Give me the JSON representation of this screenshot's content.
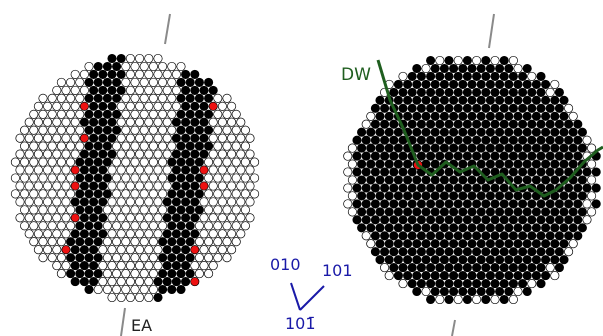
{
  "labels": {
    "dw": "DW",
    "ea": "EA",
    "dir_010": "010",
    "dir_101": "101",
    "dir_10bar1": "101̄"
  },
  "colors": {
    "black_atom": "#000000",
    "white_atom": "#ffffff",
    "red_atom": "#ee1111",
    "domain_wall": "#1f5e1f",
    "direction_axes": "#1a1aa8",
    "axis_line": "#8a8a8a"
  }
}
